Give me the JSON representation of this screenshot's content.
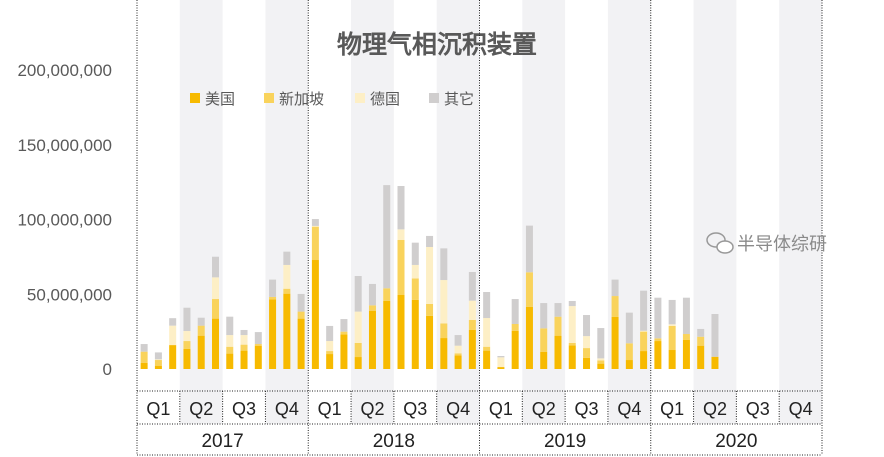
{
  "chart_data": {
    "type": "bar",
    "stacked": true,
    "title": "物理气相沉积装置",
    "xlabel": "",
    "ylabel": "",
    "ylim": [
      0,
      200000000
    ],
    "yticks": [
      "0",
      "50,000,000",
      "100,000,000",
      "150,000,000",
      "200,000,000"
    ],
    "ytick_values": [
      0,
      50000000,
      100000000,
      150000000,
      200000000
    ],
    "grid": false,
    "legend_position": "top-left",
    "x_granularity": "month",
    "quarters": [
      "Q1",
      "Q2",
      "Q3",
      "Q4"
    ],
    "years": [
      "2017",
      "2018",
      "2019",
      "2020"
    ],
    "shaded_quarters": [
      "Q2",
      "Q4"
    ],
    "colors": {
      "美国": "#F7BA00",
      "新加坡": "#F9D35C",
      "德国": "#FDEFC6",
      "其它": "#D0CECE",
      "band": "#F2F2F4"
    },
    "series": [
      {
        "name": "美国",
        "values": [
          4.2,
          2,
          16,
          13.4,
          22.3,
          33.7,
          10.3,
          12.3,
          15.6,
          46.6,
          50.4,
          33.7,
          72.9,
          10,
          23.2,
          8,
          39,
          45.5,
          49.5,
          46.2,
          35.5,
          20.7,
          9.1,
          26.1,
          12.3,
          1.3,
          25.6,
          41.5,
          11.4,
          22.3,
          15.8,
          7.4,
          3.6,
          34.8,
          6,
          12,
          18.7,
          12.7,
          19.6,
          15.6,
          8.2
        ]
      },
      {
        "name": "新加坡",
        "values": [
          7.4,
          4,
          0,
          5.3,
          6.7,
          13.1,
          4.6,
          4,
          1.1,
          1.6,
          3.3,
          4.7,
          22.3,
          2,
          1.8,
          9.4,
          3.6,
          8.5,
          36.8,
          14.4,
          8,
          9.8,
          1.4,
          6.7,
          2.6,
          0,
          4.5,
          23.2,
          15.8,
          12.7,
          1.6,
          6.6,
          2.2,
          14,
          11.2,
          13,
          1.8,
          16.1,
          3.8,
          6,
          0
        ]
      },
      {
        "name": "德国",
        "values": [
          0,
          0.5,
          13,
          6.7,
          0,
          14.5,
          7.8,
          6.4,
          0,
          0,
          15.9,
          0,
          0.5,
          6.7,
          0,
          21,
          0,
          0,
          7.1,
          9,
          38.1,
          29,
          5.1,
          12.9,
          19.2,
          6.5,
          0,
          0,
          0,
          0,
          24.7,
          8,
          1.3,
          0,
          0,
          0.6,
          0,
          1.1,
          0,
          0,
          0
        ]
      },
      {
        "name": "其它",
        "values": [
          5.1,
          4.6,
          5,
          15.6,
          5.3,
          13.8,
          12.3,
          3.4,
          8,
          11.6,
          8.9,
          11.8,
          4.6,
          10.1,
          8.4,
          23.8,
          14.3,
          69,
          29,
          14.9,
          7.4,
          21.2,
          7.1,
          19.2,
          17.4,
          0.9,
          16.7,
          31.2,
          16.9,
          9.1,
          3.4,
          14.1,
          20.3,
          11,
          20.5,
          26.8,
          27.2,
          16.3,
          24.3,
          5.2,
          28.6
        ]
      }
    ],
    "value_unit_multiplier": 1000000
  },
  "watermark": {
    "text": "半导体综研",
    "icon": "wechat-icon"
  }
}
